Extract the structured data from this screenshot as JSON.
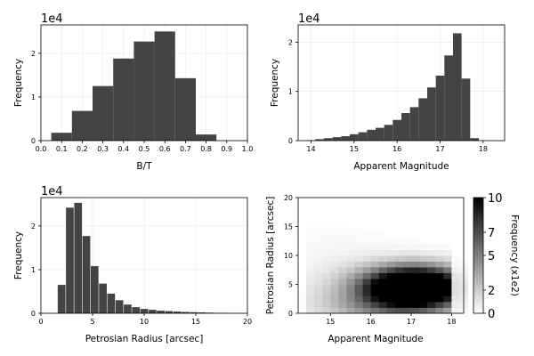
{
  "chart_data": [
    {
      "type": "bar",
      "xlabel": "B/T",
      "ylabel": "Frequency",
      "multiplier": "1e4",
      "xlim": [
        0,
        1
      ],
      "ylim": [
        0,
        2.65
      ],
      "bin_width": 0.1,
      "grid": true,
      "xticks": [
        "0.0",
        "0.1",
        "0.2",
        "0.3",
        "0.4",
        "0.5",
        "0.6",
        "0.7",
        "0.8",
        "0.9",
        "1.0"
      ],
      "yticks": [
        "0",
        "1",
        "2"
      ],
      "x": [
        0.1,
        0.2,
        0.3,
        0.4,
        0.5,
        0.6,
        0.7,
        0.8
      ],
      "values": [
        0.18,
        0.68,
        1.25,
        1.88,
        2.27,
        2.5,
        1.43,
        0.14
      ]
    },
    {
      "type": "bar",
      "xlabel": "Apparent Magnitude",
      "ylabel": "Frequency",
      "multiplier": "1e4",
      "xlim": [
        13.7,
        18.5
      ],
      "ylim": [
        0,
        2.35
      ],
      "bin_width": 0.2,
      "grid": true,
      "xticks": [
        "14",
        "15",
        "16",
        "17",
        "18"
      ],
      "yticks": [
        "0",
        "1",
        "2"
      ],
      "x": [
        14.0,
        14.2,
        14.4,
        14.6,
        14.8,
        15.0,
        15.2,
        15.4,
        15.6,
        15.8,
        16.0,
        16.2,
        16.4,
        16.6,
        16.8,
        17.0,
        17.2,
        17.4,
        17.6,
        17.8,
        18.0
      ],
      "values": [
        0.01,
        0.03,
        0.05,
        0.07,
        0.09,
        0.13,
        0.17,
        0.22,
        0.26,
        0.32,
        0.42,
        0.56,
        0.68,
        0.86,
        1.08,
        1.32,
        1.73,
        2.18,
        1.26,
        0.05,
        0.0
      ]
    },
    {
      "type": "bar",
      "xlabel": "Petrosian Radius [arcsec]",
      "ylabel": "Frequency",
      "multiplier": "1e4",
      "xlim": [
        0,
        20
      ],
      "ylim": [
        0,
        2.65
      ],
      "bin_width": 0.75,
      "grid": true,
      "xticks": [
        "0",
        "5",
        "10",
        "15",
        "20"
      ],
      "yticks": [
        "0",
        "1",
        "2"
      ],
      "x": [
        2.0,
        2.8,
        3.6,
        4.4,
        5.2,
        6.0,
        6.8,
        7.6,
        8.4,
        9.2,
        10.0,
        10.8,
        11.6,
        12.4,
        13.2,
        14.0,
        14.8,
        15.6,
        16.4,
        17.2,
        18.0,
        18.8
      ],
      "values": [
        0.65,
        2.42,
        2.53,
        1.77,
        1.08,
        0.68,
        0.45,
        0.3,
        0.2,
        0.14,
        0.1,
        0.08,
        0.06,
        0.05,
        0.04,
        0.03,
        0.025,
        0.02,
        0.015,
        0.01,
        0.008,
        0.005
      ]
    },
    {
      "type": "heatmap",
      "xlabel": "Apparent Magnitude",
      "ylabel": "Petrosian Radius [arcsec]",
      "xlim": [
        14.2,
        18.3
      ],
      "ylim": [
        0,
        20
      ],
      "xticks": [
        "15",
        "16",
        "17",
        "18"
      ],
      "yticks": [
        "0",
        "5",
        "10",
        "15",
        "20"
      ],
      "cell_width": 0.2,
      "cell_height": 1.0,
      "grid": false,
      "colorbar": {
        "label": "Frequency (x1e2)",
        "min": 0,
        "max": 10,
        "ticks": [
          "0",
          "2",
          "5",
          "7",
          "10"
        ],
        "colors": [
          "#ffffff",
          "#000000"
        ]
      }
    }
  ]
}
